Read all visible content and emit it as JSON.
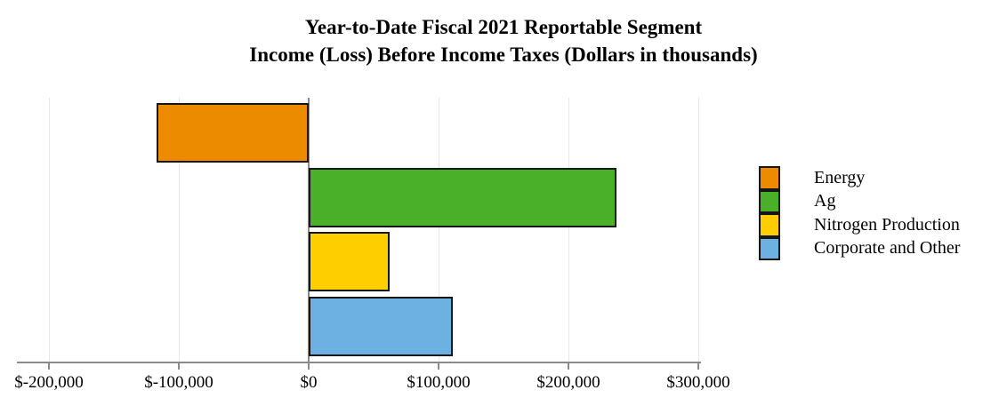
{
  "title": {
    "line1": "Year-to-Date Fiscal 2021 Reportable Segment",
    "line2": "Income (Loss) Before Income Taxes (Dollars in thousands)"
  },
  "chart_data": {
    "type": "bar",
    "orientation": "horizontal",
    "title": "Year-to-Date Fiscal 2021 Reportable Segment Income (Loss) Before Income Taxes (Dollars in thousands)",
    "unit": "dollars in thousands",
    "categories": [
      "Energy",
      "Ag",
      "Nitrogen Production",
      "Corporate and Other"
    ],
    "values": [
      -117000,
      237000,
      62000,
      111000
    ],
    "colors": [
      "#EC8B00",
      "#4AB02A",
      "#FFCE00",
      "#6CB1E1"
    ],
    "xlabel": "",
    "ylabel": "",
    "grid": true,
    "x_axis": {
      "range": [
        -225000,
        301000
      ],
      "ticks": [
        {
          "value": -200000,
          "label": "$-200,000"
        },
        {
          "value": -100000,
          "label": "$-100,000"
        },
        {
          "value": 0,
          "label": "$0"
        },
        {
          "value": 100000,
          "label": "$100,000"
        },
        {
          "value": 200000,
          "label": "$200,000"
        },
        {
          "value": 300000,
          "label": "$300,000"
        }
      ]
    },
    "legend": {
      "position": "right",
      "entries": [
        {
          "label": "Energy",
          "color": "#EC8B00"
        },
        {
          "label": "Ag",
          "color": "#4AB02A"
        },
        {
          "label": "Nitrogen Production",
          "color": "#FFCE00"
        },
        {
          "label": "Corporate and Other",
          "color": "#6CB1E1"
        }
      ]
    }
  }
}
